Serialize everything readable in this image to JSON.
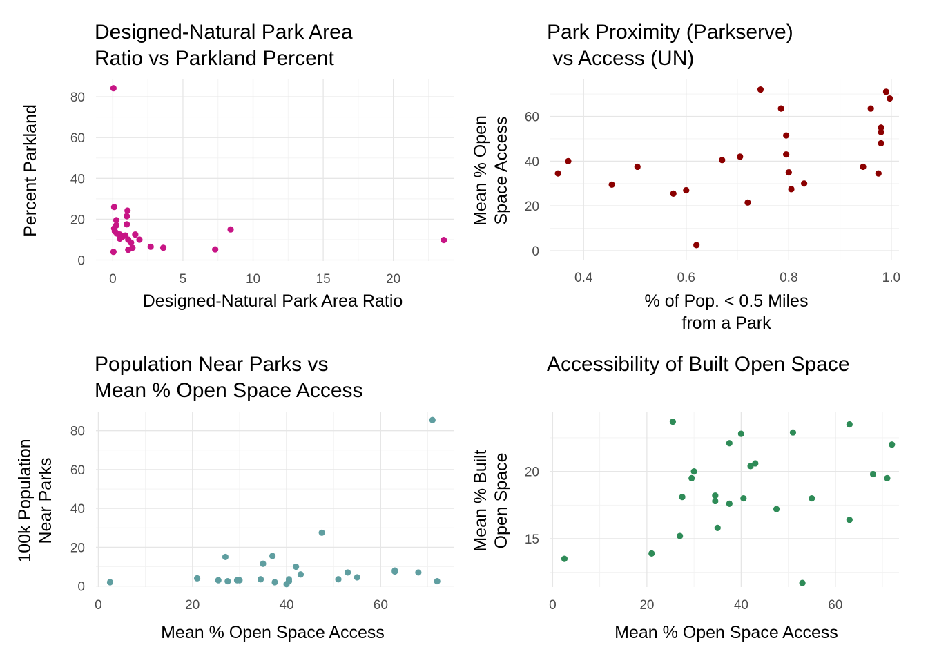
{
  "chart_data": [
    {
      "type": "scatter",
      "title": [
        "Designed-Natural Park Area",
        "Ratio vs Parkland Percent"
      ],
      "xlabel": [
        "Designed-Natural Park Area Ratio"
      ],
      "ylabel": [
        "Percent Parkland"
      ],
      "xlim": [
        -1.2,
        24.3
      ],
      "ylim": [
        -0.5,
        88.5
      ],
      "xticks": [
        0,
        5,
        10,
        15,
        20
      ],
      "yticks": [
        0,
        20,
        40,
        60,
        80
      ],
      "grid": true,
      "color": "#c71585",
      "points": [
        [
          0.05,
          84.2
        ],
        [
          0.1,
          26.0
        ],
        [
          0.25,
          19.5
        ],
        [
          0.25,
          17.0
        ],
        [
          0.1,
          15.5
        ],
        [
          0.15,
          14.0
        ],
        [
          0.3,
          13.0
        ],
        [
          0.5,
          12.5
        ],
        [
          0.5,
          10.5
        ],
        [
          0.7,
          11.5
        ],
        [
          0.9,
          12.0
        ],
        [
          0.05,
          4.0
        ],
        [
          1.05,
          24.2
        ],
        [
          1.0,
          21.5
        ],
        [
          1.0,
          17.5
        ],
        [
          1.1,
          10.0
        ],
        [
          1.3,
          8.5
        ],
        [
          1.1,
          5.0
        ],
        [
          1.4,
          6.0
        ],
        [
          1.6,
          12.5
        ],
        [
          1.9,
          10.0
        ],
        [
          2.7,
          6.5
        ],
        [
          3.6,
          6.0
        ],
        [
          7.3,
          5.2
        ],
        [
          8.4,
          15.0
        ],
        [
          23.6,
          9.8
        ]
      ]
    },
    {
      "type": "scatter",
      "title": [
        "Park Proximity (Parkserve)",
        " vs Access (UN)"
      ],
      "xlabel": [
        "% of Pop. < 0.5 Miles",
        "from a Park"
      ],
      "ylabel": [
        "Mean % Open",
        "Space Access"
      ],
      "xlim": [
        0.335,
        1.015
      ],
      "ylim": [
        -4,
        76.5
      ],
      "xticks": [
        0.4,
        0.6,
        0.8,
        1.0
      ],
      "xtick_labels": [
        "0.4",
        "0.6",
        "0.8",
        "1.0"
      ],
      "yticks": [
        0,
        20,
        40,
        60
      ],
      "grid": true,
      "color": "#8b0000",
      "points": [
        [
          0.35,
          34.5
        ],
        [
          0.37,
          40.0
        ],
        [
          0.455,
          29.5
        ],
        [
          0.505,
          37.5
        ],
        [
          0.575,
          25.5
        ],
        [
          0.6,
          27.0
        ],
        [
          0.62,
          2.5
        ],
        [
          0.67,
          40.5
        ],
        [
          0.705,
          42.0
        ],
        [
          0.72,
          21.5
        ],
        [
          0.745,
          72.0
        ],
        [
          0.785,
          63.5
        ],
        [
          0.795,
          51.5
        ],
        [
          0.795,
          43.0
        ],
        [
          0.8,
          35.0
        ],
        [
          0.805,
          27.5
        ],
        [
          0.83,
          30.0
        ],
        [
          0.945,
          37.5
        ],
        [
          0.96,
          63.5
        ],
        [
          0.975,
          34.5
        ],
        [
          0.98,
          55.0
        ],
        [
          0.98,
          53.0
        ],
        [
          0.98,
          48.0
        ],
        [
          0.99,
          71.0
        ],
        [
          0.997,
          68.0
        ]
      ]
    },
    {
      "type": "scatter",
      "title": [
        "Population Near Parks vs",
        "Mean % Open Space Access"
      ],
      "xlabel": [
        "Mean % Open Space Access"
      ],
      "ylabel": [
        "100k Population",
        "Near Parks"
      ],
      "xlim": [
        -0.5,
        75.5
      ],
      "ylim": [
        -0.5,
        89.5
      ],
      "xticks": [
        0,
        20,
        40,
        60
      ],
      "yticks": [
        0,
        20,
        40,
        60,
        80
      ],
      "grid": true,
      "color": "#5f9ea0",
      "points": [
        [
          2.5,
          2.0
        ],
        [
          21.0,
          4.0
        ],
        [
          25.5,
          3.0
        ],
        [
          27.0,
          15.0
        ],
        [
          27.5,
          2.5
        ],
        [
          29.5,
          3.0
        ],
        [
          30.0,
          3.0
        ],
        [
          34.5,
          3.5
        ],
        [
          35.0,
          11.5
        ],
        [
          37.0,
          15.5
        ],
        [
          37.5,
          2.0
        ],
        [
          40.0,
          1.0
        ],
        [
          40.5,
          2.5
        ],
        [
          40.5,
          3.5
        ],
        [
          42.0,
          10.0
        ],
        [
          43.0,
          6.0
        ],
        [
          47.5,
          27.5
        ],
        [
          51.0,
          3.5
        ],
        [
          53.0,
          7.0
        ],
        [
          55.0,
          4.5
        ],
        [
          63.0,
          7.5
        ],
        [
          63.0,
          8.0
        ],
        [
          68.0,
          7.0
        ],
        [
          71.0,
          85.5
        ],
        [
          72.0,
          2.5
        ]
      ]
    },
    {
      "type": "scatter",
      "title": [
        "Accessibility of Built Open Space"
      ],
      "xlabel": [
        "Mean % Open Space Access"
      ],
      "ylabel": [
        "Mean % Built",
        "Open Space"
      ],
      "xlim": [
        -0.5,
        73.5
      ],
      "ylim": [
        11.4,
        24.4
      ],
      "xticks": [
        0,
        20,
        40,
        60
      ],
      "yticks": [
        15,
        20
      ],
      "grid": true,
      "color": "#2e8b57",
      "points": [
        [
          2.5,
          13.5
        ],
        [
          21.0,
          13.9
        ],
        [
          25.5,
          23.7
        ],
        [
          27.0,
          15.2
        ],
        [
          27.5,
          18.1
        ],
        [
          29.5,
          19.5
        ],
        [
          30.0,
          20.0
        ],
        [
          34.5,
          18.2
        ],
        [
          34.5,
          17.8
        ],
        [
          35.0,
          15.8
        ],
        [
          37.5,
          22.1
        ],
        [
          37.5,
          17.6
        ],
        [
          40.0,
          22.8
        ],
        [
          40.5,
          18.0
        ],
        [
          42.0,
          20.4
        ],
        [
          43.0,
          20.6
        ],
        [
          47.5,
          17.2
        ],
        [
          51.0,
          22.9
        ],
        [
          53.0,
          11.7
        ],
        [
          55.0,
          18.0
        ],
        [
          63.0,
          23.5
        ],
        [
          63.0,
          16.4
        ],
        [
          68.0,
          19.8
        ],
        [
          71.0,
          19.5
        ],
        [
          72.0,
          22.0
        ]
      ]
    }
  ]
}
